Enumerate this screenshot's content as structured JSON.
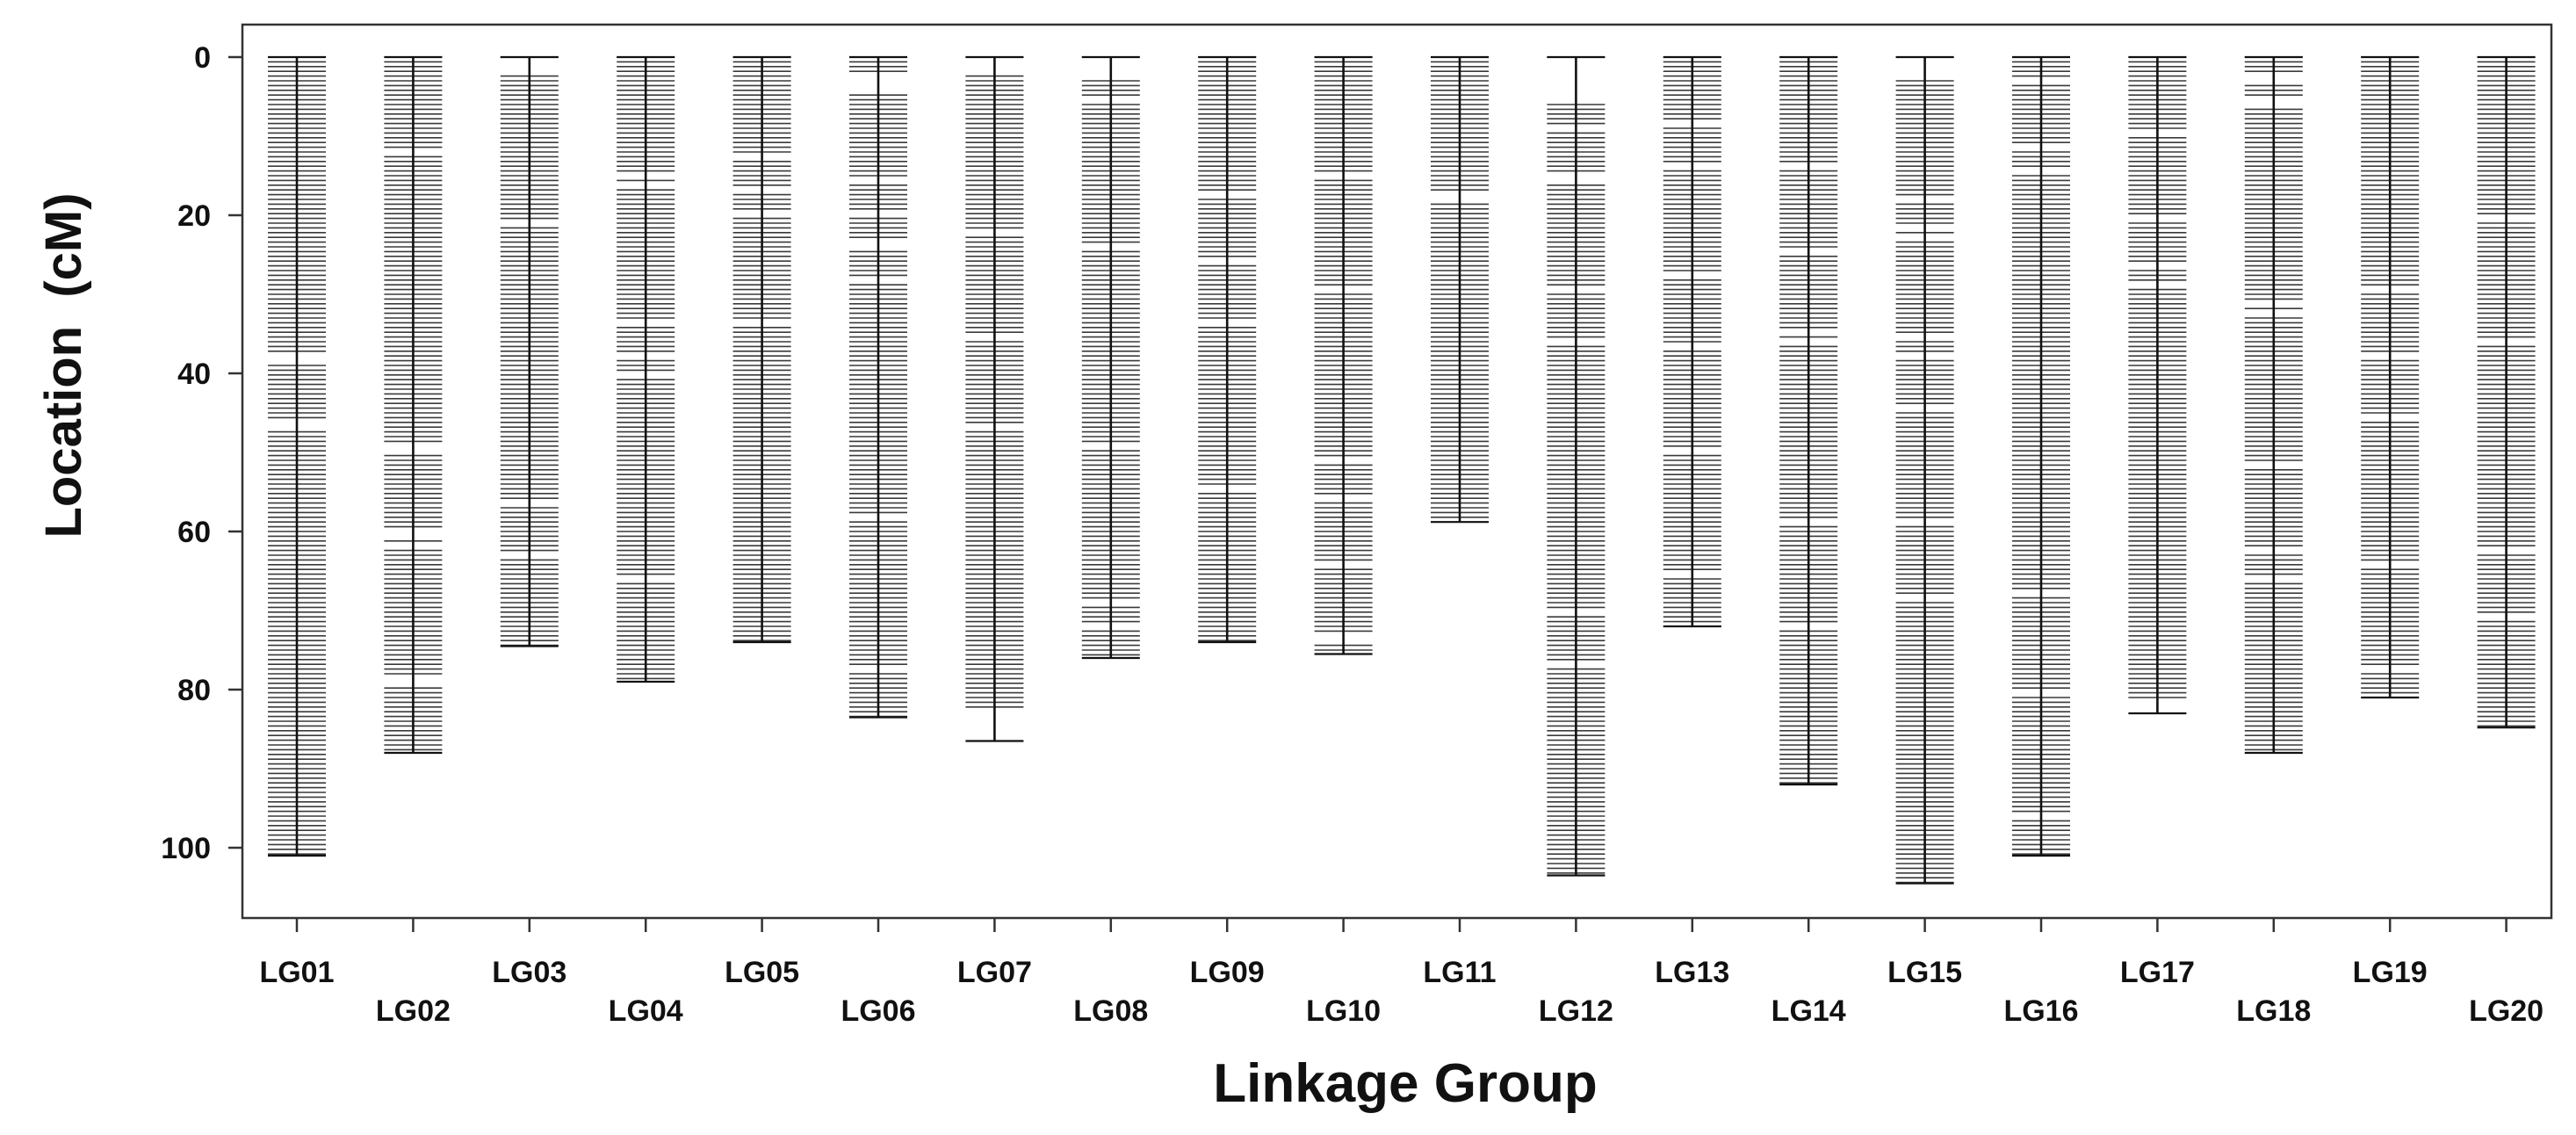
{
  "chart_data": {
    "type": "linkage-map",
    "xlabel": "Linkage Group",
    "ylabel": "Location  (cM)",
    "ylim": [
      -4,
      108
    ],
    "yticks": [
      0,
      20,
      40,
      60,
      80,
      100
    ],
    "y_reversed": true,
    "grid": false,
    "marker_spacing_cM": 0.6,
    "colors": {
      "marker": "#3a3a3a",
      "backbone": "#111111",
      "frame": "#333333"
    },
    "groups": [
      {
        "name": "LG01",
        "length": 101,
        "gaps": [
          [
            37.8,
            38.8
          ],
          [
            46.2,
            47.4
          ]
        ]
      },
      {
        "name": "LG02",
        "length": 88,
        "gaps": [
          [
            11.5,
            12.3
          ],
          [
            49.2,
            50.2
          ],
          [
            59.8,
            61.0
          ],
          [
            61.6,
            62.0
          ],
          [
            78.2,
            79.2
          ]
        ]
      },
      {
        "name": "LG03",
        "length": 74.5,
        "gaps": [
          [
            0.3,
            2.0
          ],
          [
            20.8,
            21.4
          ],
          [
            56.2,
            56.8
          ],
          [
            62.5,
            63.2
          ]
        ]
      },
      {
        "name": "LG04",
        "length": 79,
        "gaps": [
          [
            14.8,
            15.4
          ],
          [
            15.9,
            16.5
          ],
          [
            33.5,
            34.2
          ],
          [
            37.6,
            38.3
          ],
          [
            39.8,
            40.5
          ],
          [
            65.9,
            66.6
          ]
        ]
      },
      {
        "name": "LG05",
        "length": 74,
        "gaps": [
          [
            12.0,
            12.7
          ],
          [
            16.3,
            17.0
          ],
          [
            19.4,
            20.0
          ],
          [
            33.4,
            34.1
          ]
        ]
      },
      {
        "name": "LG06",
        "length": 83.5,
        "gaps": [
          [
            2.3,
            4.3
          ],
          [
            15.2,
            15.8
          ],
          [
            19.3,
            20.0
          ],
          [
            23.4,
            24.1
          ],
          [
            27.8,
            28.5
          ],
          [
            57.8,
            58.5
          ],
          [
            76.8,
            77.5
          ]
        ]
      },
      {
        "name": "LG07",
        "length": 82.5,
        "tail": 86.5,
        "gaps": [
          [
            0.3,
            2.0
          ],
          [
            21.8,
            22.4
          ],
          [
            35.2,
            35.8
          ],
          [
            46.5,
            47.1
          ]
        ]
      },
      {
        "name": "LG08",
        "length": 76,
        "gaps": [
          [
            0.3,
            2.6
          ],
          [
            5.0,
            5.6
          ],
          [
            23.5,
            24.1
          ],
          [
            49.0,
            49.6
          ],
          [
            68.7,
            69.4
          ],
          [
            71.6,
            72.2
          ]
        ]
      },
      {
        "name": "LG09",
        "length": 74,
        "gaps": [
          [
            16.8,
            17.4
          ],
          [
            25.3,
            26.0
          ],
          [
            33.6,
            34.2
          ],
          [
            54.2,
            54.8
          ]
        ]
      },
      {
        "name": "LG10",
        "length": 75.5,
        "gaps": [
          [
            14.9,
            15.5
          ],
          [
            29.4,
            30.0
          ],
          [
            50.8,
            51.5
          ],
          [
            55.7,
            56.4
          ],
          [
            63.9,
            64.6
          ],
          [
            73.2,
            73.9
          ]
        ]
      },
      {
        "name": "LG11",
        "length": 58.8,
        "gaps": [
          [
            17.4,
            18.0
          ]
        ]
      },
      {
        "name": "LG12",
        "length": 103.5,
        "gaps": [
          [
            0.3,
            5.8
          ],
          [
            8.8,
            9.4
          ],
          [
            14.5,
            15.7
          ],
          [
            29.0,
            29.6
          ],
          [
            35.7,
            36.3
          ],
          [
            69.8,
            70.4
          ],
          [
            76.6,
            77.2
          ]
        ]
      },
      {
        "name": "LG13",
        "length": 72,
        "gaps": [
          [
            7.8,
            8.4
          ],
          [
            13.6,
            14.2
          ],
          [
            27.6,
            28.2
          ],
          [
            36.1,
            36.7
          ],
          [
            49.8,
            50.4
          ],
          [
            65.3,
            65.9
          ]
        ]
      },
      {
        "name": "LG14",
        "length": 92,
        "gaps": [
          [
            13.5,
            14.1
          ],
          [
            24.5,
            25.1
          ],
          [
            34.4,
            35.0
          ],
          [
            35.8,
            36.4
          ],
          [
            58.3,
            58.9
          ],
          [
            71.8,
            72.4
          ]
        ]
      },
      {
        "name": "LG15",
        "length": 104.5,
        "gaps": [
          [
            0.3,
            2.6
          ],
          [
            17.5,
            18.1
          ],
          [
            21.3,
            21.9
          ],
          [
            22.5,
            23.1
          ],
          [
            35.3,
            35.9
          ],
          [
            37.5,
            38.1
          ],
          [
            43.9,
            44.5
          ],
          [
            58.3,
            58.9
          ],
          [
            68.1,
            68.7
          ]
        ]
      },
      {
        "name": "LG16",
        "length": 101,
        "gaps": [
          [
            2.7,
            3.3
          ],
          [
            11.2,
            11.8
          ],
          [
            14.2,
            14.8
          ],
          [
            67.6,
            68.2
          ],
          [
            79.8,
            80.4
          ],
          [
            95.7,
            96.3
          ]
        ]
      },
      {
        "name": "LG17",
        "length": 81,
        "tail": 83,
        "gaps": [
          [
            9.3,
            9.9
          ],
          [
            20.3,
            20.9
          ],
          [
            26.2,
            26.8
          ],
          [
            28.4,
            29.0
          ]
        ]
      },
      {
        "name": "LG18",
        "length": 88,
        "gaps": [
          [
            1.8,
            2.4
          ],
          [
            2.9,
            3.5
          ],
          [
            4.9,
            6.5
          ],
          [
            30.7,
            31.3
          ],
          [
            31.9,
            32.5
          ],
          [
            51.5,
            52.1
          ],
          [
            62.2,
            62.8
          ],
          [
            65.9,
            66.5
          ]
        ]
      },
      {
        "name": "LG19",
        "length": 81,
        "gaps": [
          [
            28.9,
            29.5
          ],
          [
            37.7,
            38.3
          ],
          [
            45.6,
            46.2
          ],
          [
            63.8,
            64.4
          ],
          [
            76.9,
            77.5
          ]
        ]
      },
      {
        "name": "LG20",
        "length": 84.8,
        "gaps": [
          [
            20.3,
            20.9
          ],
          [
            35.8,
            36.4
          ],
          [
            62.2,
            62.8
          ],
          [
            70.3,
            70.9
          ]
        ]
      }
    ]
  }
}
